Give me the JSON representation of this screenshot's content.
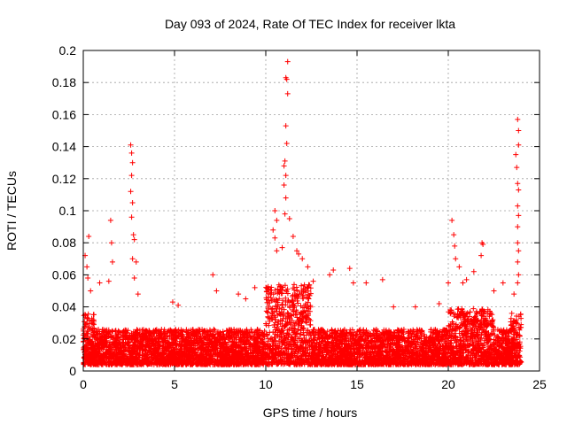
{
  "chart_data": {
    "type": "scatter",
    "title": "Day 093 of 2024, Rate Of TEC Index for receiver lkta",
    "xlabel": "GPS time / hours",
    "ylabel": "ROTI / TECUs",
    "xlim": [
      0,
      25
    ],
    "ylim": [
      0,
      0.2
    ],
    "x_ticks": [
      0,
      5,
      10,
      15,
      20,
      25
    ],
    "y_ticks": [
      0,
      0.02,
      0.04,
      0.06,
      0.08,
      0.1,
      0.12,
      0.14,
      0.16,
      0.18,
      0.2
    ],
    "x_tick_labels": [
      "0",
      "5",
      "10",
      "15",
      "20",
      "25"
    ],
    "y_tick_labels": [
      "0",
      "0.02",
      "0.04",
      "0.06",
      "0.08",
      "0.1",
      "0.12",
      "0.14",
      "0.16",
      "0.18",
      "0.2"
    ],
    "grid": true,
    "marker": "+",
    "series": [
      {
        "name": "ROTI",
        "color": "#ff0000",
        "points": [
          [
            0.1,
            0.072
          ],
          [
            0.2,
            0.065
          ],
          [
            0.3,
            0.084
          ],
          [
            0.25,
            0.058
          ],
          [
            0.4,
            0.05
          ],
          [
            0.9,
            0.055
          ],
          [
            1.4,
            0.056
          ],
          [
            1.5,
            0.094
          ],
          [
            1.55,
            0.08
          ],
          [
            1.6,
            0.068
          ],
          [
            2.6,
            0.141
          ],
          [
            2.65,
            0.136
          ],
          [
            2.7,
            0.13
          ],
          [
            2.65,
            0.122
          ],
          [
            2.6,
            0.112
          ],
          [
            2.7,
            0.105
          ],
          [
            2.65,
            0.096
          ],
          [
            2.75,
            0.085
          ],
          [
            2.8,
            0.082
          ],
          [
            2.7,
            0.07
          ],
          [
            2.9,
            0.068
          ],
          [
            2.8,
            0.058
          ],
          [
            3.0,
            0.048
          ],
          [
            4.9,
            0.043
          ],
          [
            5.2,
            0.041
          ],
          [
            7.1,
            0.06
          ],
          [
            7.3,
            0.05
          ],
          [
            8.5,
            0.048
          ],
          [
            8.9,
            0.045
          ],
          [
            9.4,
            0.052
          ],
          [
            10.4,
            0.088
          ],
          [
            10.5,
            0.1
          ],
          [
            10.6,
            0.094
          ],
          [
            10.5,
            0.083
          ],
          [
            10.6,
            0.075
          ],
          [
            10.9,
            0.077
          ],
          [
            11.0,
            0.128
          ],
          [
            11.05,
            0.131
          ],
          [
            11.1,
            0.122
          ],
          [
            11.0,
            0.116
          ],
          [
            11.1,
            0.108
          ],
          [
            11.05,
            0.098
          ],
          [
            11.1,
            0.153
          ],
          [
            11.15,
            0.142
          ],
          [
            11.1,
            0.183
          ],
          [
            11.15,
            0.182
          ],
          [
            11.2,
            0.173
          ],
          [
            11.2,
            0.193
          ],
          [
            11.3,
            0.095
          ],
          [
            11.5,
            0.084
          ],
          [
            11.7,
            0.075
          ],
          [
            11.8,
            0.073
          ],
          [
            12.0,
            0.07
          ],
          [
            12.3,
            0.065
          ],
          [
            12.6,
            0.056
          ],
          [
            13.5,
            0.06
          ],
          [
            13.7,
            0.063
          ],
          [
            14.6,
            0.064
          ],
          [
            14.8,
            0.055
          ],
          [
            15.5,
            0.055
          ],
          [
            16.4,
            0.057
          ],
          [
            17.0,
            0.04
          ],
          [
            18.2,
            0.04
          ],
          [
            19.5,
            0.042
          ],
          [
            20.0,
            0.055
          ],
          [
            20.2,
            0.094
          ],
          [
            20.3,
            0.085
          ],
          [
            20.35,
            0.078
          ],
          [
            20.4,
            0.07
          ],
          [
            20.6,
            0.065
          ],
          [
            20.8,
            0.055
          ],
          [
            21.0,
            0.057
          ],
          [
            21.4,
            0.062
          ],
          [
            21.8,
            0.072
          ],
          [
            21.85,
            0.08
          ],
          [
            21.9,
            0.079
          ],
          [
            22.5,
            0.05
          ],
          [
            23.0,
            0.055
          ],
          [
            23.6,
            0.048
          ],
          [
            23.7,
            0.135
          ],
          [
            23.75,
            0.127
          ],
          [
            23.8,
            0.157
          ],
          [
            23.85,
            0.15
          ],
          [
            23.85,
            0.141
          ],
          [
            23.8,
            0.117
          ],
          [
            23.85,
            0.113
          ],
          [
            23.8,
            0.103
          ],
          [
            23.85,
            0.097
          ],
          [
            23.8,
            0.09
          ],
          [
            23.8,
            0.08
          ],
          [
            23.85,
            0.075
          ],
          [
            23.8,
            0.068
          ],
          [
            23.85,
            0.06
          ],
          [
            23.8,
            0.055
          ]
        ]
      }
    ]
  }
}
